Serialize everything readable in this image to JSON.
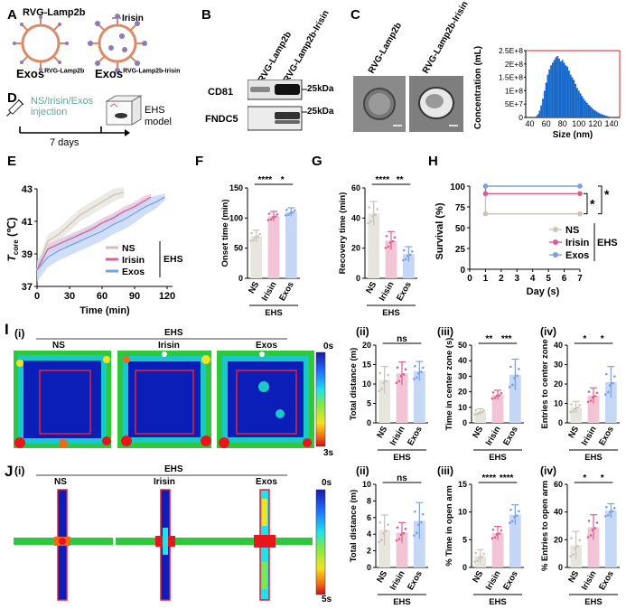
{
  "panels": {
    "A": "A",
    "B": "B",
    "C": "C",
    "D": "D",
    "E": "E",
    "F": "F",
    "G": "G",
    "H": "H",
    "I": "I",
    "J": "J"
  },
  "panel_A": {
    "label_top": "RVG-Lamp2b",
    "label_irisin": "Irisin",
    "exos1_main": "Exos",
    "exos1_sup": "RVG-Lamp2b",
    "exos2_main": "Exos",
    "exos2_sup": "RVG-Lamp2b-Irisin"
  },
  "panel_B": {
    "col1": "RVG-Lamp2b",
    "col2": "RVG-Lamp2b-Irisin",
    "row1": "CD81",
    "row2": "FNDC5",
    "kda1": "25kDa",
    "kda2": "25kDa"
  },
  "panel_C": {
    "img1": "RVG-Lamp2b",
    "img2": "RVG-Lamp2b-Irisin"
  },
  "panel_D": {
    "injection": "NS/Irisin/Exos injection",
    "days": "7 days",
    "ehs_model": "EHS model"
  },
  "colors": {
    "ns": "#c9c3b8",
    "irisin": "#d9608e",
    "exos": "#7b9fe0",
    "ns_fill": "#e8e4de",
    "irisin_fill": "#f2c4d6",
    "exos_fill": "#c6d6f5",
    "hist": "#1466c8",
    "teal": "#5fa896"
  },
  "heat_i": {
    "title": "EHS",
    "roman": "(i)",
    "labels": [
      "NS",
      "Irisin",
      "Exos"
    ],
    "scale_top": "0s",
    "scale_bottom": "3s"
  },
  "heat_j": {
    "title": "EHS",
    "roman": "(i)",
    "labels": [
      "NS",
      "Irisin",
      "Exos"
    ],
    "scale_top": "0s",
    "scale_bottom": "5s"
  },
  "chart_data": [
    {
      "id": "C-hist",
      "type": "bar",
      "xlabel": "Size (nm)",
      "ylabel": "Concentration (mL)",
      "xlim": [
        35,
        150
      ],
      "ylim": [
        0,
        250000000
      ],
      "xticks": [
        "40",
        "60",
        "80",
        "100",
        "120",
        "140"
      ],
      "yticks": [
        "0",
        "5E+7",
        "1E+8",
        "1.5E+8",
        "2E+8",
        "2.5E+8"
      ],
      "x": [
        46,
        48,
        50,
        52,
        54,
        56,
        58,
        60,
        62,
        64,
        66,
        68,
        70,
        72,
        74,
        76,
        78,
        80,
        82,
        84,
        86,
        88,
        90,
        92,
        94,
        96,
        98,
        100,
        102,
        104,
        106,
        108,
        110,
        112,
        114,
        116,
        118,
        120,
        122,
        124,
        126,
        128,
        130,
        132,
        134,
        136,
        138,
        140
      ],
      "values": [
        2000000,
        5000000,
        12000000,
        25000000,
        45000000,
        70000000,
        100000000,
        130000000,
        160000000,
        180000000,
        195000000,
        205000000,
        215000000,
        225000000,
        230000000,
        220000000,
        210000000,
        215000000,
        205000000,
        195000000,
        190000000,
        175000000,
        160000000,
        150000000,
        140000000,
        125000000,
        110000000,
        100000000,
        90000000,
        80000000,
        70000000,
        62000000,
        55000000,
        48000000,
        42000000,
        36000000,
        30000000,
        26000000,
        22000000,
        18000000,
        15000000,
        12000000,
        10000000,
        8000000,
        6000000,
        4000000,
        3000000,
        2000000
      ]
    },
    {
      "id": "E-line",
      "type": "area",
      "xlabel": "Time (min)",
      "ylabel_main": "T",
      "ylabel_sub": "core",
      "ylabel_unit": "(℃)",
      "xlim": [
        0,
        125
      ],
      "ylim": [
        37,
        43
      ],
      "xticks": [
        "0",
        "30",
        "60",
        "90",
        "120"
      ],
      "yticks": [
        "37",
        "39",
        "41",
        "43"
      ],
      "legend": [
        "NS",
        "Irisin",
        "Exos"
      ],
      "legend_group": "EHS",
      "series": [
        {
          "name": "NS",
          "x": [
            0,
            10,
            20,
            30,
            40,
            50,
            60,
            70,
            80
          ],
          "y": [
            38.0,
            39.8,
            40.2,
            40.8,
            41.4,
            41.8,
            42.2,
            42.6,
            42.8
          ],
          "lo": [
            37.6,
            39.4,
            39.8,
            40.4,
            41.0,
            41.4,
            41.8,
            42.2,
            42.5
          ],
          "hi": [
            38.4,
            40.2,
            40.6,
            41.2,
            41.8,
            42.2,
            42.6,
            43.0,
            43.1
          ]
        },
        {
          "name": "Irisin",
          "x": [
            0,
            10,
            20,
            30,
            40,
            50,
            60,
            70,
            80,
            90,
            100,
            105
          ],
          "y": [
            38.0,
            39.3,
            39.6,
            39.9,
            40.2,
            40.5,
            40.9,
            41.2,
            41.6,
            41.9,
            42.3,
            42.5
          ],
          "lo": [
            37.7,
            39.0,
            39.3,
            39.6,
            39.9,
            40.2,
            40.6,
            40.9,
            41.3,
            41.6,
            42.0,
            42.3
          ],
          "hi": [
            38.3,
            39.6,
            39.9,
            40.2,
            40.5,
            40.8,
            41.2,
            41.5,
            41.9,
            42.2,
            42.6,
            42.7
          ]
        },
        {
          "name": "Exos",
          "x": [
            0,
            10,
            20,
            30,
            40,
            50,
            60,
            70,
            80,
            90,
            100,
            110,
            118
          ],
          "y": [
            38.0,
            38.8,
            39.2,
            39.5,
            39.8,
            40.1,
            40.4,
            40.8,
            41.1,
            41.5,
            41.9,
            42.2,
            42.5
          ],
          "lo": [
            37.3,
            38.2,
            38.6,
            38.9,
            39.2,
            39.5,
            39.8,
            40.2,
            40.5,
            40.9,
            41.4,
            41.8,
            42.3
          ],
          "hi": [
            38.6,
            39.4,
            39.8,
            40.1,
            40.4,
            40.7,
            41.0,
            41.4,
            41.7,
            42.1,
            42.4,
            42.6,
            42.7
          ]
        }
      ]
    },
    {
      "id": "F-bar",
      "type": "bar",
      "ylabel": "Onset time (min)",
      "group": "EHS",
      "categories": [
        "NS",
        "Irisin",
        "Exos"
      ],
      "values": [
        70,
        103,
        110
      ],
      "errors": [
        10,
        8,
        7
      ],
      "ylim": [
        0,
        150
      ],
      "yticks": [
        "0",
        "50",
        "100",
        "150"
      ],
      "sig": [
        {
          "a": 0,
          "b": 1,
          "text": "****"
        },
        {
          "a": 1,
          "b": 2,
          "text": "*"
        }
      ]
    },
    {
      "id": "G-bar",
      "type": "bar",
      "ylabel": "Recovery time (min)",
      "group": "EHS",
      "categories": [
        "NS",
        "Irisin",
        "Exos"
      ],
      "values": [
        43,
        25,
        16
      ],
      "errors": [
        8,
        6,
        5
      ],
      "ylim": [
        0,
        60
      ],
      "yticks": [
        "0",
        "20",
        "40",
        "60"
      ],
      "sig": [
        {
          "a": 0,
          "b": 1,
          "text": "****"
        },
        {
          "a": 1,
          "b": 2,
          "text": "**"
        }
      ]
    },
    {
      "id": "H-line",
      "type": "line",
      "xlabel": "Day (s)",
      "ylabel": "Survival (%)",
      "xlim": [
        0,
        7
      ],
      "ylim": [
        0,
        100
      ],
      "xticks": [
        "0",
        "1",
        "2",
        "3",
        "4",
        "5",
        "6",
        "7"
      ],
      "yticks": [
        "0",
        "25",
        "50",
        "75",
        "100"
      ],
      "legend": [
        "NS",
        "Irisin",
        "Exos"
      ],
      "legend_group": "EHS",
      "series": [
        {
          "name": "NS",
          "x": [
            1,
            7
          ],
          "y": [
            66.7,
            66.7
          ]
        },
        {
          "name": "Irisin",
          "x": [
            1,
            7
          ],
          "y": [
            91,
            91
          ]
        },
        {
          "name": "Exos",
          "x": [
            1,
            7
          ],
          "y": [
            100,
            100
          ]
        }
      ],
      "sig": [
        "*",
        "*"
      ]
    },
    {
      "id": "I-ii",
      "type": "bar",
      "roman": "(ii)",
      "ylabel": "Total distance (m)",
      "group": "EHS",
      "categories": [
        "NS",
        "Irisin",
        "Exos"
      ],
      "values": [
        11,
        12.7,
        13.3
      ],
      "errors": [
        3.5,
        3,
        2.5
      ],
      "ylim": [
        0,
        20
      ],
      "yticks": [
        "0",
        "5",
        "10",
        "15",
        "20"
      ],
      "sig": [
        {
          "a": 0,
          "b": 2,
          "text": "ns"
        }
      ]
    },
    {
      "id": "I-iii",
      "type": "bar",
      "roman": "(iii)",
      "ylabel": "Time in center zone (s)",
      "group": "EHS",
      "categories": [
        "NS",
        "Irisin",
        "Exos"
      ],
      "values": [
        7,
        18,
        31
      ],
      "errors": [
        2,
        3,
        10
      ],
      "ylim": [
        0,
        50
      ],
      "yticks": [
        "0",
        "10",
        "20",
        "30",
        "40",
        "50"
      ],
      "sig": [
        {
          "a": 0,
          "b": 1,
          "text": "**"
        },
        {
          "a": 1,
          "b": 2,
          "text": "***"
        }
      ]
    },
    {
      "id": "I-iv",
      "type": "bar",
      "roman": "(iv)",
      "ylabel": "Entries to center zone",
      "group": "EHS",
      "categories": [
        "NS",
        "Irisin",
        "Exos"
      ],
      "values": [
        8,
        14,
        21
      ],
      "errors": [
        3,
        4,
        8
      ],
      "ylim": [
        0,
        40
      ],
      "yticks": [
        "0",
        "10",
        "20",
        "30",
        "40"
      ],
      "sig": [
        {
          "a": 0,
          "b": 1,
          "text": "*"
        },
        {
          "a": 1,
          "b": 2,
          "text": "*"
        }
      ]
    },
    {
      "id": "J-ii",
      "type": "bar",
      "roman": "(ii)",
      "ylabel": "Total distance (m)",
      "group": "EHS",
      "categories": [
        "NS",
        "Irisin",
        "Exos"
      ],
      "values": [
        4.5,
        4.2,
        5.6
      ],
      "errors": [
        1.8,
        1.2,
        2.2
      ],
      "ylim": [
        0,
        10
      ],
      "yticks": [
        "0",
        "2",
        "4",
        "6",
        "8",
        "10"
      ],
      "sig": [
        {
          "a": 0,
          "b": 2,
          "text": "ns"
        }
      ]
    },
    {
      "id": "J-iii",
      "type": "bar",
      "roman": "(iii)",
      "ylabel": "% Time in open arm",
      "group": "EHS",
      "categories": [
        "NS",
        "Irisin",
        "Exos"
      ],
      "values": [
        2,
        6.2,
        9.5
      ],
      "errors": [
        1.2,
        1.2,
        1.8
      ],
      "ylim": [
        0,
        15
      ],
      "yticks": [
        "0",
        "5",
        "10",
        "15"
      ],
      "sig": [
        {
          "a": 0,
          "b": 1,
          "text": "****"
        },
        {
          "a": 1,
          "b": 2,
          "text": "****"
        }
      ]
    },
    {
      "id": "J-iv",
      "type": "bar",
      "roman": "(iv)",
      "ylabel": "% Entries to open arm",
      "group": "EHS",
      "categories": [
        "NS",
        "Irisin",
        "Exos"
      ],
      "values": [
        16,
        29,
        41
      ],
      "errors": [
        10,
        9,
        5
      ],
      "ylim": [
        0,
        60
      ],
      "yticks": [
        "0",
        "20",
        "40",
        "60"
      ],
      "sig": [
        {
          "a": 0,
          "b": 1,
          "text": "*"
        },
        {
          "a": 1,
          "b": 2,
          "text": "*"
        }
      ]
    }
  ]
}
